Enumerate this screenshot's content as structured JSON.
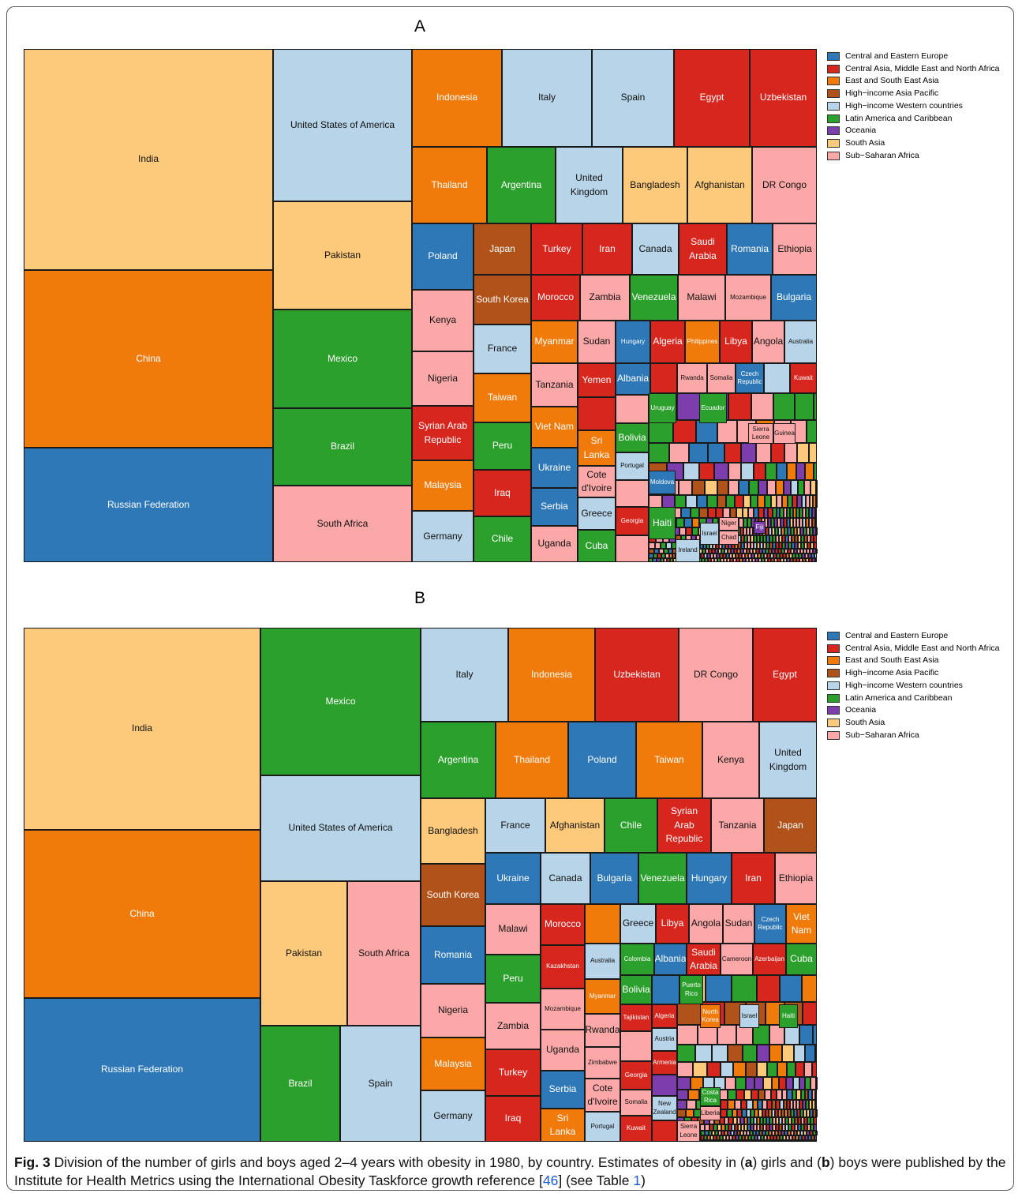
{
  "figure": {
    "panels": [
      {
        "title": "A",
        "legend": [
          {
            "name": "Central and Eastern Europe",
            "color": "#2e78b7"
          },
          {
            "name": "Central Asia, Middle East and North Africa",
            "color": "#d7261e"
          },
          {
            "name": "East and South East Asia",
            "color": "#f07b0a"
          },
          {
            "name": "High−income Asia Pacific",
            "color": "#b05219"
          },
          {
            "name": "High−income Western countries",
            "color": "#b7d4e8"
          },
          {
            "name": "Latin America and Caribbean",
            "color": "#2ca02c"
          },
          {
            "name": "Oceania",
            "color": "#7b3eac"
          },
          {
            "name": "South Asia",
            "color": "#fdc97a"
          },
          {
            "name": "Sub−Saharan Africa",
            "color": "#fca8a8"
          }
        ],
        "tiles": [
          {
            "label": "India",
            "group": 7
          },
          {
            "label": "China",
            "group": 2
          },
          {
            "label": "Russian Federation",
            "group": 0
          },
          {
            "label": "United States of America",
            "group": 4
          },
          {
            "label": "Pakistan",
            "group": 7
          },
          {
            "label": "Mexico",
            "group": 5
          },
          {
            "label": "Brazil",
            "group": 5
          },
          {
            "label": "South Africa",
            "group": 8
          },
          {
            "label": "Indonesia",
            "group": 2
          },
          {
            "label": "Italy",
            "group": 4
          },
          {
            "label": "Spain",
            "group": 4
          },
          {
            "label": "Egypt",
            "group": 1
          },
          {
            "label": "Uzbekistan",
            "group": 1
          },
          {
            "label": "Thailand",
            "group": 2
          },
          {
            "label": "Argentina",
            "group": 5
          },
          {
            "label": "United Kingdom",
            "group": 4
          },
          {
            "label": "Bangladesh",
            "group": 7
          },
          {
            "label": "Afghanistan",
            "group": 7
          },
          {
            "label": "DR Congo",
            "group": 8
          },
          {
            "label": "Poland",
            "group": 0
          },
          {
            "label": "Kenya",
            "group": 8
          },
          {
            "label": "Nigeria",
            "group": 8
          },
          {
            "label": "Syrian Arab Republic",
            "group": 1
          },
          {
            "label": "Malaysia",
            "group": 2
          },
          {
            "label": "Germany",
            "group": 4
          },
          {
            "label": "Japan",
            "group": 3
          },
          {
            "label": "South Korea",
            "group": 3
          },
          {
            "label": "France",
            "group": 4
          },
          {
            "label": "Taiwan",
            "group": 2
          },
          {
            "label": "Peru",
            "group": 5
          },
          {
            "label": "Iraq",
            "group": 1
          },
          {
            "label": "Chile",
            "group": 5
          },
          {
            "label": "Turkey",
            "group": 1
          },
          {
            "label": "Iran",
            "group": 1
          },
          {
            "label": "Canada",
            "group": 4
          },
          {
            "label": "Saudi Arabia",
            "group": 1
          },
          {
            "label": "Romania",
            "group": 0
          },
          {
            "label": "Ethiopia",
            "group": 8
          },
          {
            "label": "Morocco",
            "group": 1
          },
          {
            "label": "Zambia",
            "group": 8
          },
          {
            "label": "Venezuela",
            "group": 5
          },
          {
            "label": "Malawi",
            "group": 8
          },
          {
            "label": "Mozambique",
            "group": 8
          },
          {
            "label": "Bulgaria",
            "group": 0
          },
          {
            "label": "Myanmar",
            "group": 2
          },
          {
            "label": "Sudan",
            "group": 8
          },
          {
            "label": "Hungary",
            "group": 0
          },
          {
            "label": "Algeria",
            "group": 1
          },
          {
            "label": "Philippines",
            "group": 2
          },
          {
            "label": "Libya",
            "group": 1
          },
          {
            "label": "Angola",
            "group": 8
          },
          {
            "label": "Australia",
            "group": 4
          },
          {
            "label": "Tanzania",
            "group": 8
          },
          {
            "label": "Yemen",
            "group": 1
          },
          {
            "label": "Albania",
            "group": 0
          },
          {
            "label": "Rwanda",
            "group": 8
          },
          {
            "label": "Somalia",
            "group": 8
          },
          {
            "label": "Czech Republic",
            "group": 0
          },
          {
            "label": "Kuwait",
            "group": 1
          },
          {
            "label": "Viet Nam",
            "group": 2
          },
          {
            "label": "Sri Lanka",
            "group": 2
          },
          {
            "label": "Ukraine",
            "group": 0
          },
          {
            "label": "Serbia",
            "group": 0
          },
          {
            "label": "Uganda",
            "group": 8
          },
          {
            "label": "Cote d'Ivoire",
            "group": 8
          },
          {
            "label": "Greece",
            "group": 4
          },
          {
            "label": "Cuba",
            "group": 5
          },
          {
            "label": "Bolivia",
            "group": 5
          },
          {
            "label": "Portugal",
            "group": 4
          },
          {
            "label": "Georgia",
            "group": 1
          },
          {
            "label": "Uruguay",
            "group": 5
          },
          {
            "label": "Ecuador",
            "group": 5
          },
          {
            "label": "Moldova",
            "group": 0
          },
          {
            "label": "Haiti",
            "group": 5
          },
          {
            "label": "Ireland",
            "group": 4
          },
          {
            "label": "Israel",
            "group": 4
          },
          {
            "label": "Niger",
            "group": 8
          },
          {
            "label": "Chad",
            "group": 8
          },
          {
            "label": "Fiji",
            "group": 6
          },
          {
            "label": "Sierra Leone",
            "group": 8
          },
          {
            "label": "Guinea",
            "group": 8
          }
        ]
      },
      {
        "title": "B",
        "legend": [
          {
            "name": "Central and Eastern Europe",
            "color": "#2e78b7"
          },
          {
            "name": "Central Asia, Middle East and North Africa",
            "color": "#d7261e"
          },
          {
            "name": "East and South East Asia",
            "color": "#f07b0a"
          },
          {
            "name": "High−income Asia Pacific",
            "color": "#b05219"
          },
          {
            "name": "High−income Western countries",
            "color": "#b7d4e8"
          },
          {
            "name": "Latin America and Caribbean",
            "color": "#2ca02c"
          },
          {
            "name": "Oceania",
            "color": "#7b3eac"
          },
          {
            "name": "South Asia",
            "color": "#fdc97a"
          },
          {
            "name": "Sub−Saharan Africa",
            "color": "#fca8a8"
          }
        ],
        "tiles": [
          {
            "label": "India",
            "group": 7
          },
          {
            "label": "China",
            "group": 2
          },
          {
            "label": "Russian Federation",
            "group": 0
          },
          {
            "label": "Mexico",
            "group": 5
          },
          {
            "label": "United States of America",
            "group": 4
          },
          {
            "label": "Pakistan",
            "group": 7
          },
          {
            "label": "South Africa",
            "group": 8
          },
          {
            "label": "Brazil",
            "group": 5
          },
          {
            "label": "Spain",
            "group": 4
          },
          {
            "label": "Italy",
            "group": 4
          },
          {
            "label": "Indonesia",
            "group": 2
          },
          {
            "label": "Uzbekistan",
            "group": 1
          },
          {
            "label": "DR Congo",
            "group": 8
          },
          {
            "label": "Egypt",
            "group": 1
          },
          {
            "label": "Argentina",
            "group": 5
          },
          {
            "label": "Thailand",
            "group": 2
          },
          {
            "label": "Poland",
            "group": 0
          },
          {
            "label": "Taiwan",
            "group": 2
          },
          {
            "label": "Kenya",
            "group": 8
          },
          {
            "label": "United Kingdom",
            "group": 4
          },
          {
            "label": "Bangladesh",
            "group": 7
          },
          {
            "label": "South Korea",
            "group": 3
          },
          {
            "label": "Romania",
            "group": 0
          },
          {
            "label": "Nigeria",
            "group": 8
          },
          {
            "label": "Malaysia",
            "group": 2
          },
          {
            "label": "Germany",
            "group": 4
          },
          {
            "label": "France",
            "group": 4
          },
          {
            "label": "Afghanistan",
            "group": 7
          },
          {
            "label": "Chile",
            "group": 5
          },
          {
            "label": "Syrian Arab Republic",
            "group": 1
          },
          {
            "label": "Tanzania",
            "group": 8
          },
          {
            "label": "Japan",
            "group": 3
          },
          {
            "label": "Ukraine",
            "group": 0
          },
          {
            "label": "Canada",
            "group": 4
          },
          {
            "label": "Bulgaria",
            "group": 0
          },
          {
            "label": "Venezuela",
            "group": 5
          },
          {
            "label": "Hungary",
            "group": 0
          },
          {
            "label": "Iran",
            "group": 1
          },
          {
            "label": "Ethiopia",
            "group": 8
          },
          {
            "label": "Malawi",
            "group": 8
          },
          {
            "label": "Peru",
            "group": 5
          },
          {
            "label": "Zambia",
            "group": 8
          },
          {
            "label": "Turkey",
            "group": 1
          },
          {
            "label": "Iraq",
            "group": 1
          },
          {
            "label": "Morocco",
            "group": 1
          },
          {
            "label": "Greece",
            "group": 4
          },
          {
            "label": "Libya",
            "group": 1
          },
          {
            "label": "Angola",
            "group": 8
          },
          {
            "label": "Sudan",
            "group": 8
          },
          {
            "label": "Czech Republic",
            "group": 0
          },
          {
            "label": "Viet Nam",
            "group": 2
          },
          {
            "label": "Kazakhstan",
            "group": 1
          },
          {
            "label": "Australia",
            "group": 4
          },
          {
            "label": "Mozambique",
            "group": 8
          },
          {
            "label": "Myanmar",
            "group": 2
          },
          {
            "label": "Uganda",
            "group": 8
          },
          {
            "label": "Rwanda",
            "group": 8
          },
          {
            "label": "Zimbabwe",
            "group": 8
          },
          {
            "label": "Serbia",
            "group": 0
          },
          {
            "label": "Cote d'Ivoire",
            "group": 8
          },
          {
            "label": "Sri Lanka",
            "group": 2
          },
          {
            "label": "Portugal",
            "group": 4
          },
          {
            "label": "Colombia",
            "group": 5
          },
          {
            "label": "Albania",
            "group": 0
          },
          {
            "label": "Saudi Arabia",
            "group": 1
          },
          {
            "label": "Cameroon",
            "group": 8
          },
          {
            "label": "Azerbaijan",
            "group": 1
          },
          {
            "label": "Cuba",
            "group": 5
          },
          {
            "label": "Bolivia",
            "group": 5
          },
          {
            "label": "Puerto Rico",
            "group": 5
          },
          {
            "label": "Tajikistan",
            "group": 1
          },
          {
            "label": "Georgia",
            "group": 1
          },
          {
            "label": "Somalia",
            "group": 8
          },
          {
            "label": "Kuwait",
            "group": 1
          },
          {
            "label": "Algeria",
            "group": 1
          },
          {
            "label": "Austria",
            "group": 4
          },
          {
            "label": "Armenia",
            "group": 1
          },
          {
            "label": "New Zealand",
            "group": 4
          },
          {
            "label": "North Korea",
            "group": 2
          },
          {
            "label": "Israel",
            "group": 4
          },
          {
            "label": "Haiti",
            "group": 5
          },
          {
            "label": "Costa Rica",
            "group": 5
          },
          {
            "label": "Liberia",
            "group": 8
          },
          {
            "label": "Sierra Leone",
            "group": 8
          }
        ]
      }
    ],
    "caption": [
      {
        "text": "Fig. 3",
        "style": "bold"
      },
      {
        "text": " Division of the number of girls and boys aged 2–4 years with obesity in 1980, by country. Estimates of obesity in (",
        "style": "plain"
      },
      {
        "text": "a",
        "style": "bold"
      },
      {
        "text": ") girls and (",
        "style": "plain"
      },
      {
        "text": "b",
        "style": "bold"
      },
      {
        "text": ") boys were published by the Institute for Health Metrics using the International Obesity Taskforce growth reference [",
        "style": "plain"
      },
      {
        "text": "46",
        "style": "link"
      },
      {
        "text": "] (see Table ",
        "style": "plain"
      },
      {
        "text": "1",
        "style": "link"
      },
      {
        "text": ")",
        "style": "plain"
      }
    ]
  }
}
